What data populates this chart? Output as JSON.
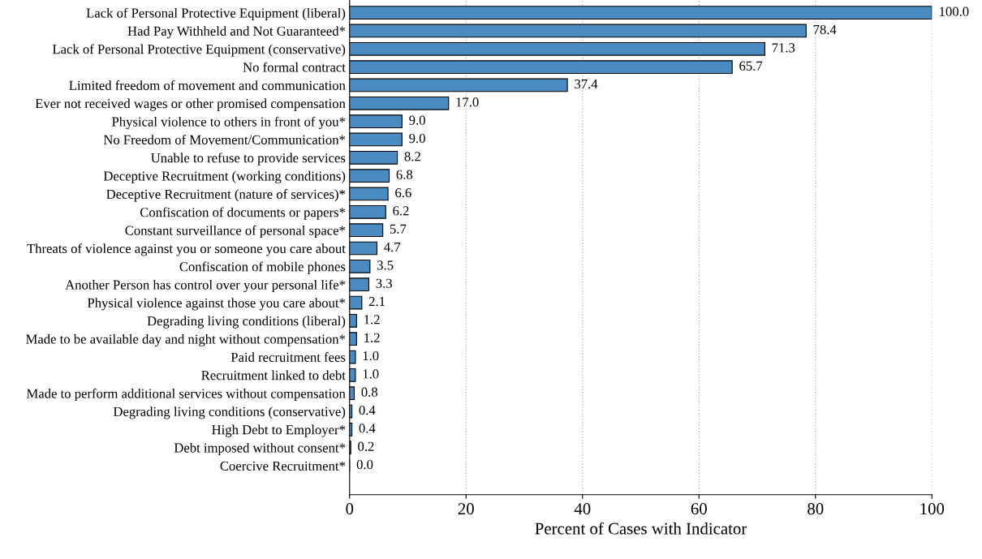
{
  "chart_data": {
    "type": "bar",
    "orientation": "horizontal",
    "xlabel": "Percent of Cases with Indicator",
    "categories": [
      "Lack of Personal Protective Equipment (liberal)",
      "Had Pay Withheld and Not Guaranteed*",
      "Lack of Personal Protective Equipment (conservative)",
      "No formal contract",
      "Limited freedom of movement and communication",
      "Ever not received wages or other promised compensation",
      "Physical violence to others in front of you*",
      "No Freedom of Movement/Communication*",
      "Unable to refuse to provide services",
      "Deceptive Recruitment (working conditions)",
      "Deceptive Recruitment (nature of services)*",
      "Confiscation of documents or papers*",
      "Constant surveillance of personal space*",
      "Threats of violence against you or someone you care about",
      "Confiscation of mobile phones",
      "Another Person has control over your personal life*",
      "Physical violence against those you care about*",
      "Degrading living conditions (liberal)",
      "Made to be available day and night without compensation*",
      "Paid recruitment fees",
      "Recruitment linked to debt",
      "Made to perform additional services without compensation",
      "Degrading living conditions (conservative)",
      "High Debt to Employer*",
      "Debt imposed without consent*",
      "Coercive Recruitment*"
    ],
    "values": [
      100.0,
      78.4,
      71.3,
      65.7,
      37.4,
      17.0,
      9.0,
      9.0,
      8.2,
      6.8,
      6.6,
      6.2,
      5.7,
      4.7,
      3.5,
      3.3,
      2.1,
      1.2,
      1.2,
      1.0,
      1.0,
      0.8,
      0.4,
      0.4,
      0.2,
      0.0
    ],
    "value_labels": [
      "100.0",
      "78.4",
      "71.3",
      "65.7",
      "37.4",
      "17.0",
      "9.0",
      "9.0",
      "8.2",
      "6.8",
      "6.6",
      "6.2",
      "5.7",
      "4.7",
      "3.5",
      "3.3",
      "2.1",
      "1.2",
      "1.2",
      "1.0",
      "1.0",
      "0.8",
      "0.4",
      "0.4",
      "0.2",
      "0.0"
    ],
    "color": "#4a8cc2",
    "xlim": [
      0,
      100
    ],
    "xticks": [
      0,
      20,
      40,
      60,
      80,
      100
    ],
    "grid": "x"
  }
}
